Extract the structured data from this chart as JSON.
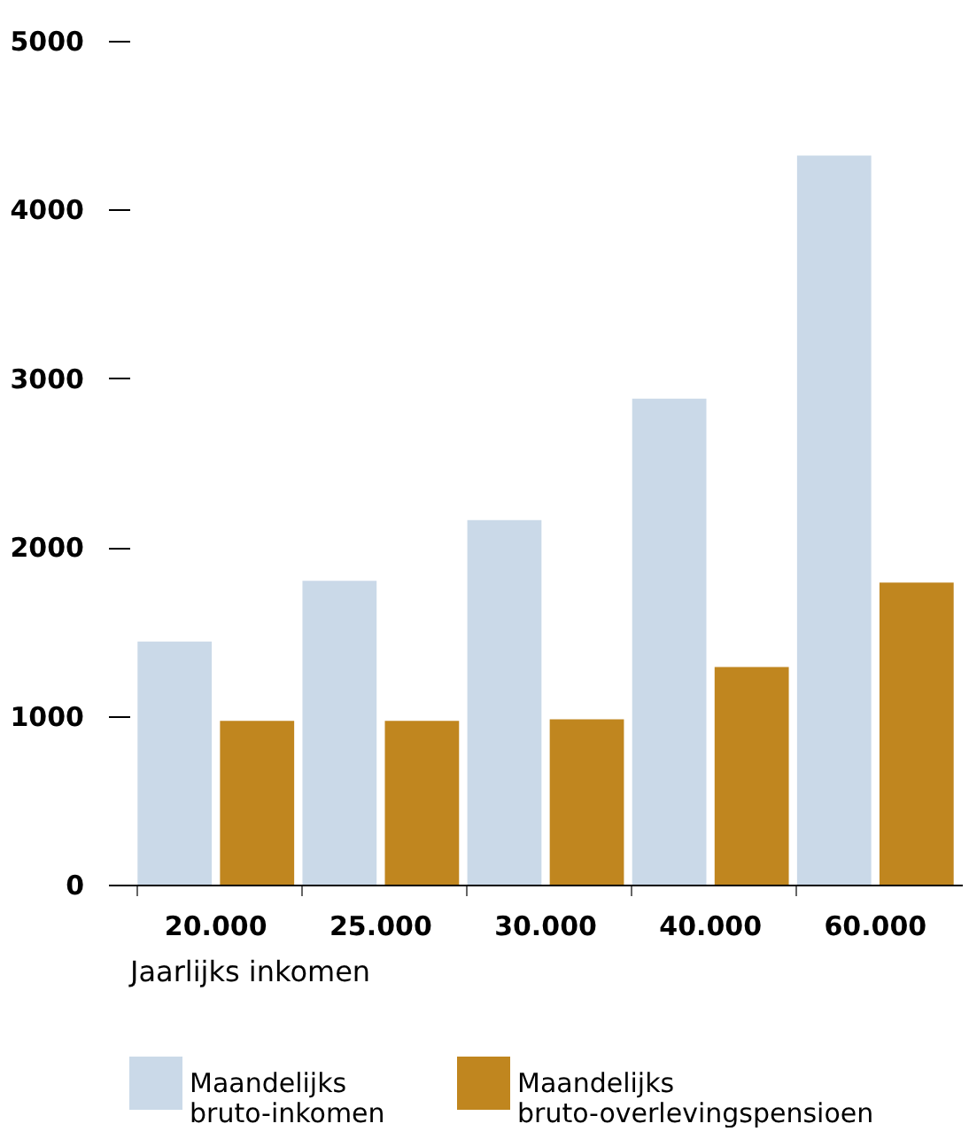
{
  "chart_data": {
    "type": "bar",
    "xlabel": "Jaarlijks inkomen",
    "categories": [
      "20.000",
      "25.000",
      "30.000",
      "40.000",
      "60.000"
    ],
    "series": [
      {
        "name": "Maandelijks bruto-inkomen",
        "color": "#cad9e8",
        "values": [
          1440,
          1800,
          2160,
          2880,
          4320
        ]
      },
      {
        "name": "Maandelijks bruto-overlevingspensioen",
        "color": "#c0861f",
        "values": [
          970,
          970,
          980,
          1290,
          1790
        ]
      }
    ],
    "ylim": [
      0,
      5000
    ],
    "yticks": [
      0,
      1000,
      2000,
      3000,
      4000,
      5000
    ],
    "grid": false,
    "legend": "bottom"
  }
}
